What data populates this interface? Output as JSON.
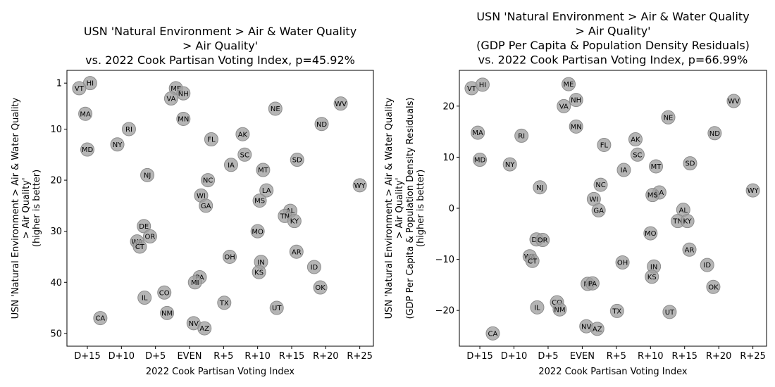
{
  "chart_data": [
    {
      "type": "scatter",
      "title": [
        "USN 'Natural Environment > Air & Water Quality",
        "> Air Quality'",
        "vs. 2022 Cook Partisan Voting Index, p=45.92%"
      ],
      "xlabel": "2022 Cook Partisan Voting Index",
      "ylabel": [
        "USN 'Natural Environment > Air & Water Quality",
        "> Air Quality'",
        "(higher is better)"
      ],
      "xlim": [
        -18,
        27
      ],
      "ylim": [
        52.5,
        -1.5
      ],
      "y_inverted": true,
      "x_ticks": [
        -15,
        -10,
        -5,
        0,
        5,
        10,
        15,
        20,
        25
      ],
      "x_tick_labels": [
        "D+15",
        "D+10",
        "D+5",
        "EVEN",
        "R+5",
        "R+10",
        "R+15",
        "R+20",
        "R+25"
      ],
      "y_ticks": [
        1,
        10,
        20,
        30,
        40,
        50
      ],
      "y_tick_labels": [
        "1",
        "10",
        "20",
        "30",
        "40",
        "50"
      ],
      "grid": false,
      "points": [
        {
          "label": "HI",
          "x": -14.6,
          "y": 1
        },
        {
          "label": "VT",
          "x": -16.2,
          "y": 2
        },
        {
          "label": "ME",
          "x": -2,
          "y": 2
        },
        {
          "label": "NH",
          "x": -0.9,
          "y": 3
        },
        {
          "label": "VA",
          "x": -2.7,
          "y": 4
        },
        {
          "label": "WV",
          "x": 22.2,
          "y": 5
        },
        {
          "label": "NE",
          "x": 12.6,
          "y": 6
        },
        {
          "label": "MA",
          "x": -15.3,
          "y": 7
        },
        {
          "label": "MN",
          "x": -0.9,
          "y": 8
        },
        {
          "label": "ND",
          "x": 19.4,
          "y": 9
        },
        {
          "label": "RI",
          "x": -8.9,
          "y": 10
        },
        {
          "label": "AK",
          "x": 7.8,
          "y": 11
        },
        {
          "label": "FL",
          "x": 3.2,
          "y": 12
        },
        {
          "label": "NY",
          "x": -10.6,
          "y": 13
        },
        {
          "label": "MD",
          "x": -15,
          "y": 14
        },
        {
          "label": "SC",
          "x": 8.1,
          "y": 15
        },
        {
          "label": "SD",
          "x": 15.8,
          "y": 16
        },
        {
          "label": "IA",
          "x": 6.1,
          "y": 17
        },
        {
          "label": "MT",
          "x": 10.8,
          "y": 18
        },
        {
          "label": "NJ",
          "x": -6.2,
          "y": 19
        },
        {
          "label": "NC",
          "x": 2.7,
          "y": 20
        },
        {
          "label": "LA",
          "x": 11.3,
          "y": 22
        },
        {
          "label": "WY",
          "x": 25,
          "y": 21
        },
        {
          "label": "WI",
          "x": 1.7,
          "y": 23
        },
        {
          "label": "MS",
          "x": 10.3,
          "y": 24
        },
        {
          "label": "GA",
          "x": 2.4,
          "y": 25
        },
        {
          "label": "AL",
          "x": 14.8,
          "y": 26
        },
        {
          "label": "TN",
          "x": 14,
          "y": 27
        },
        {
          "label": "KY",
          "x": 15.4,
          "y": 28
        },
        {
          "label": "DE",
          "x": -6.7,
          "y": 29
        },
        {
          "label": "MO",
          "x": 10,
          "y": 30
        },
        {
          "label": "OR",
          "x": -5.8,
          "y": 31
        },
        {
          "label": "WA",
          "x": -7.7,
          "y": 32
        },
        {
          "label": "CT",
          "x": -7.3,
          "y": 33
        },
        {
          "label": "AR",
          "x": 15.7,
          "y": 34
        },
        {
          "label": "OH",
          "x": 5.9,
          "y": 35
        },
        {
          "label": "IN",
          "x": 10.5,
          "y": 36
        },
        {
          "label": "ID",
          "x": 18.3,
          "y": 37
        },
        {
          "label": "KS",
          "x": 10.2,
          "y": 38
        },
        {
          "label": "PA",
          "x": 1.5,
          "y": 39
        },
        {
          "label": "MI",
          "x": 0.8,
          "y": 40
        },
        {
          "label": "OK",
          "x": 19.2,
          "y": 41
        },
        {
          "label": "CO",
          "x": -3.7,
          "y": 42
        },
        {
          "label": "IL",
          "x": -6.6,
          "y": 43
        },
        {
          "label": "TX",
          "x": 5.1,
          "y": 44
        },
        {
          "label": "UT",
          "x": 12.8,
          "y": 45
        },
        {
          "label": "NM",
          "x": -3.3,
          "y": 46
        },
        {
          "label": "CA",
          "x": -13.1,
          "y": 47
        },
        {
          "label": "NV",
          "x": 0.6,
          "y": 48
        },
        {
          "label": "AZ",
          "x": 2.2,
          "y": 49
        }
      ]
    },
    {
      "type": "scatter",
      "title": [
        "USN 'Natural Environment > Air & Water Quality",
        "> Air Quality'",
        "(GDP Per Capita & Population Density Residuals)",
        "vs. 2022 Cook Partisan Voting Index, p=66.99%"
      ],
      "xlabel": "2022 Cook Partisan Voting Index",
      "ylabel": [
        "USN 'Natural Environment > Air & Water Quality",
        "> Air Quality'",
        "(GDP Per Capita & Population Density Residuals)",
        "(higher is better)"
      ],
      "xlim": [
        -18,
        27
      ],
      "ylim": [
        -27,
        27
      ],
      "x_ticks": [
        -15,
        -10,
        -5,
        0,
        5,
        10,
        15,
        20,
        25
      ],
      "x_tick_labels": [
        "D+15",
        "D+10",
        "D+5",
        "EVEN",
        "R+5",
        "R+10",
        "R+15",
        "R+20",
        "R+25"
      ],
      "y_ticks": [
        -20,
        -10,
        0,
        10,
        20
      ],
      "y_tick_labels": [
        "−20",
        "−10",
        "0",
        "10",
        "20"
      ],
      "grid": false,
      "points": [
        {
          "label": "VT",
          "x": -16.2,
          "y": 23.5
        },
        {
          "label": "HI",
          "x": -14.6,
          "y": 24.2
        },
        {
          "label": "ME",
          "x": -2,
          "y": 24.3
        },
        {
          "label": "NH",
          "x": -0.9,
          "y": 21.2
        },
        {
          "label": "VA",
          "x": -2.7,
          "y": 20
        },
        {
          "label": "WV",
          "x": 22.2,
          "y": 21
        },
        {
          "label": "NE",
          "x": 12.6,
          "y": 17.8
        },
        {
          "label": "MN",
          "x": -0.9,
          "y": 16
        },
        {
          "label": "MA",
          "x": -15.3,
          "y": 14.8
        },
        {
          "label": "RI",
          "x": -8.9,
          "y": 14.2
        },
        {
          "label": "ND",
          "x": 19.4,
          "y": 14.7
        },
        {
          "label": "AK",
          "x": 7.8,
          "y": 13.5
        },
        {
          "label": "FL",
          "x": 3.2,
          "y": 12.4
        },
        {
          "label": "SC",
          "x": 8.1,
          "y": 10.5
        },
        {
          "label": "MD",
          "x": -15,
          "y": 9.5
        },
        {
          "label": "NY",
          "x": -10.6,
          "y": 8.6
        },
        {
          "label": "SD",
          "x": 15.8,
          "y": 8.8
        },
        {
          "label": "MT",
          "x": 10.8,
          "y": 8.2
        },
        {
          "label": "IA",
          "x": 6.1,
          "y": 7.5
        },
        {
          "label": "NC",
          "x": 2.7,
          "y": 4.6
        },
        {
          "label": "NJ",
          "x": -6.2,
          "y": 4.1
        },
        {
          "label": "WY",
          "x": 25,
          "y": 3.5
        },
        {
          "label": "LA",
          "x": 11.3,
          "y": 3.1
        },
        {
          "label": "MS",
          "x": 10.3,
          "y": 2.6
        },
        {
          "label": "WI",
          "x": 1.7,
          "y": 1.8
        },
        {
          "label": "GA",
          "x": 2.4,
          "y": -0.4
        },
        {
          "label": "AL",
          "x": 14.8,
          "y": -0.3
        },
        {
          "label": "TN",
          "x": 14,
          "y": -2.5
        },
        {
          "label": "KY",
          "x": 15.4,
          "y": -2.5
        },
        {
          "label": "MO",
          "x": 10,
          "y": -4.9
        },
        {
          "label": "DE",
          "x": -6.7,
          "y": -6.1
        },
        {
          "label": "OR",
          "x": -5.8,
          "y": -6.2
        },
        {
          "label": "AR",
          "x": 15.7,
          "y": -8.1
        },
        {
          "label": "WA",
          "x": -7.7,
          "y": -9.4
        },
        {
          "label": "CT",
          "x": -7.3,
          "y": -10.3
        },
        {
          "label": "OH",
          "x": 5.9,
          "y": -10.6
        },
        {
          "label": "ID",
          "x": 18.3,
          "y": -11.1
        },
        {
          "label": "IN",
          "x": 10.5,
          "y": -11.4
        },
        {
          "label": "KS",
          "x": 10.2,
          "y": -13.4
        },
        {
          "label": "MI",
          "x": 0.8,
          "y": -14.8
        },
        {
          "label": "PA",
          "x": 1.5,
          "y": -14.7
        },
        {
          "label": "OK",
          "x": 19.2,
          "y": -15.4
        },
        {
          "label": "CO",
          "x": -3.7,
          "y": -18.4
        },
        {
          "label": "IL",
          "x": -6.6,
          "y": -19.4
        },
        {
          "label": "NM",
          "x": -3.3,
          "y": -19.8
        },
        {
          "label": "TX",
          "x": 5.1,
          "y": -20.1
        },
        {
          "label": "UT",
          "x": 12.8,
          "y": -20.3
        },
        {
          "label": "NV",
          "x": 0.6,
          "y": -23.1
        },
        {
          "label": "AZ",
          "x": 2.2,
          "y": -23.6
        },
        {
          "label": "CA",
          "x": -13.1,
          "y": -24.5
        }
      ]
    }
  ],
  "colors": {
    "marker_fill": "#a0a0a0",
    "marker_edge": "#8c8c8c",
    "axis": "#000000"
  }
}
